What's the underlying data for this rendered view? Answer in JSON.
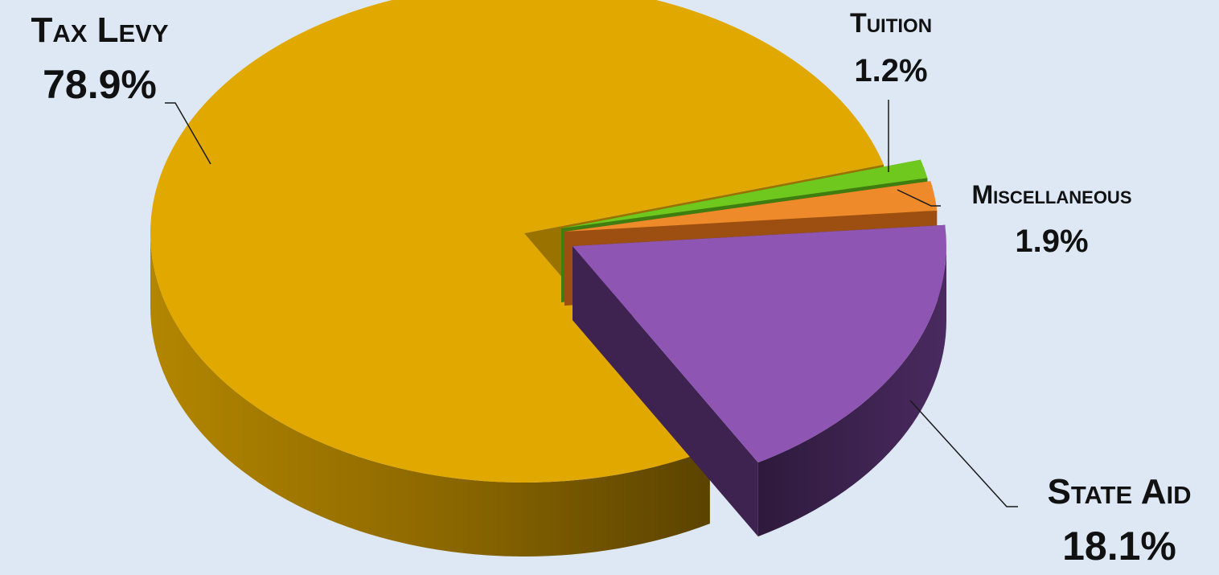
{
  "chart_data": {
    "type": "pie",
    "style": "3d-exploded",
    "legend": "none",
    "slices": [
      {
        "label": "Tax Levy",
        "value": 78.9,
        "value_label": "78.9%",
        "color": "#e1a800",
        "side_color": "#9a7200"
      },
      {
        "label": "Tuition",
        "value": 1.2,
        "value_label": "1.2%",
        "color": "#6fc81e",
        "side_color": "#3f7d10"
      },
      {
        "label": "Miscellaneous",
        "value": 1.9,
        "value_label": "1.9%",
        "color": "#ee8a2a",
        "side_color": "#9c4f10"
      },
      {
        "label": "State Aid",
        "value": 18.1,
        "value_label": "18.1%",
        "color": "#8e55b3",
        "side_color": "#3e2250"
      }
    ]
  },
  "colors": {
    "background": "#dde8f4",
    "leader_line": "#1a1a1a"
  }
}
